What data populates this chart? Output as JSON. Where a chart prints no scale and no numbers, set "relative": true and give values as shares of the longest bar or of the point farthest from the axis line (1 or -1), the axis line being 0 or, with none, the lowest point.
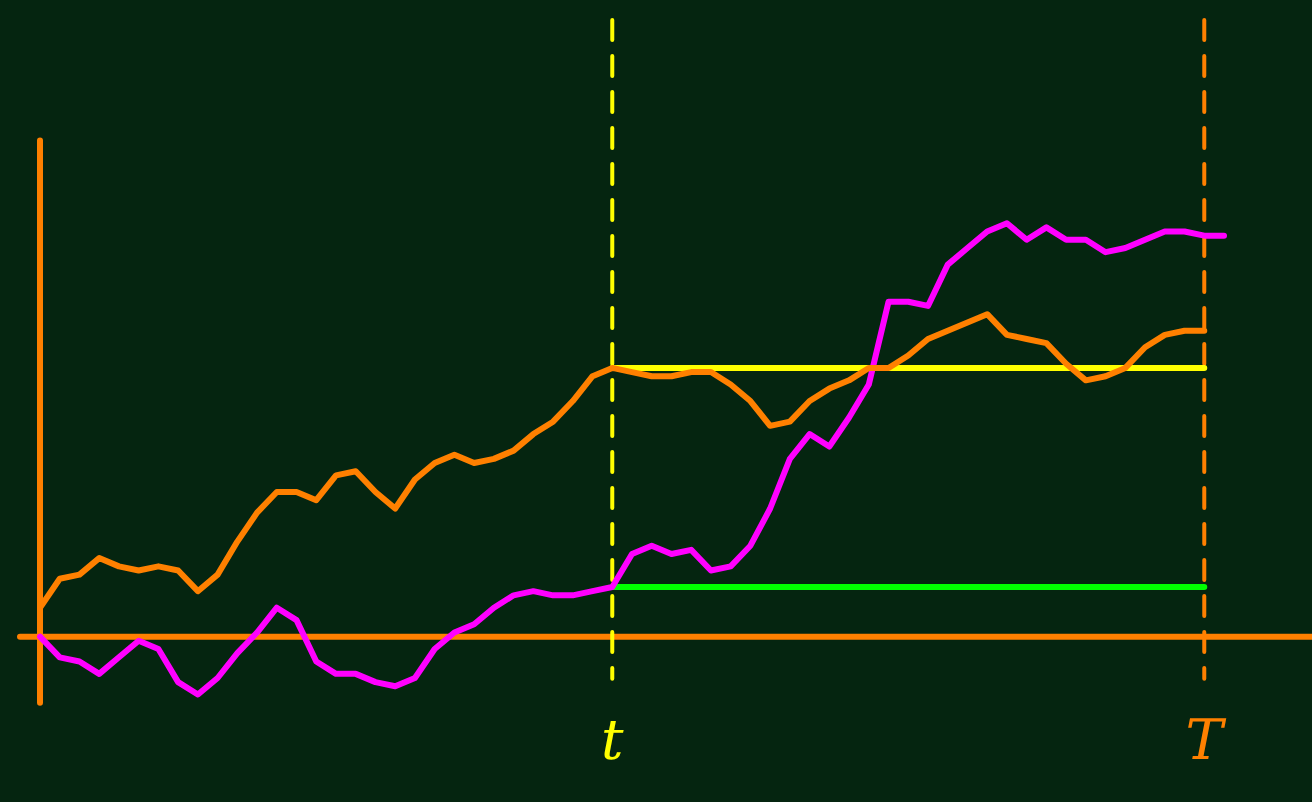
{
  "chart_data": {
    "type": "line",
    "relative": true,
    "grid": false,
    "legend": false,
    "marker": "none",
    "line_style": "solid",
    "categories": [
      null,
      null,
      null,
      null,
      null,
      null,
      null,
      null,
      null,
      null,
      null,
      null,
      null,
      null,
      null,
      null,
      null,
      null,
      null,
      null,
      null,
      null,
      null,
      null,
      null,
      null,
      null,
      null,
      null,
      "t",
      null,
      null,
      null,
      null,
      null,
      null,
      null,
      null,
      null,
      null,
      null,
      null,
      null,
      null,
      null,
      null,
      null,
      null,
      null,
      null,
      null,
      null,
      null,
      null,
      null,
      null,
      null,
      null,
      null,
      "T",
      null
    ],
    "series": [
      {
        "color": "#ff8000",
        "values": [
          0.07,
          0.14,
          0.15,
          0.19,
          0.17,
          0.16,
          0.17,
          0.16,
          0.11,
          0.15,
          0.23,
          0.3,
          0.35,
          0.35,
          0.33,
          0.39,
          0.4,
          0.35,
          0.31,
          0.38,
          0.42,
          0.44,
          0.42,
          0.43,
          0.45,
          0.49,
          0.52,
          0.57,
          0.63,
          0.65,
          0.64,
          0.63,
          0.63,
          0.64,
          0.64,
          0.61,
          0.57,
          0.51,
          0.52,
          0.57,
          0.6,
          0.62,
          0.65,
          0.65,
          0.68,
          0.72,
          0.74,
          0.76,
          0.78,
          0.73,
          0.72,
          0.71,
          0.66,
          0.62,
          0.63,
          0.65,
          0.7,
          0.73,
          0.74,
          0.74,
          null
        ]
      },
      {
        "color": "#ff00ff",
        "values": [
          0,
          -0.05,
          -0.06,
          -0.09,
          -0.05,
          -0.01,
          -0.03,
          -0.11,
          -0.14,
          -0.1,
          -0.04,
          0.01,
          0.07,
          0.04,
          -0.06,
          -0.09,
          -0.09,
          -0.11,
          -0.12,
          -0.1,
          -0.03,
          0.01,
          0.03,
          0.07,
          0.1,
          0.11,
          0.1,
          0.1,
          0.11,
          0.12,
          0.2,
          0.22,
          0.2,
          0.21,
          0.16,
          0.17,
          0.22,
          0.31,
          0.43,
          0.49,
          0.46,
          0.53,
          0.61,
          0.81,
          0.81,
          0.8,
          0.9,
          0.94,
          0.98,
          1,
          0.96,
          0.99,
          0.96,
          0.96,
          0.93,
          0.94,
          0.96,
          0.98,
          0.98,
          0.97,
          0.97
        ]
      },
      {
        "color": "#ffff00",
        "values": [
          null,
          null,
          null,
          null,
          null,
          null,
          null,
          null,
          null,
          null,
          null,
          null,
          null,
          null,
          null,
          null,
          null,
          null,
          null,
          null,
          null,
          null,
          null,
          null,
          null,
          null,
          null,
          null,
          null,
          0.65,
          0.65,
          0.65,
          0.65,
          0.65,
          0.65,
          0.65,
          0.65,
          0.65,
          0.65,
          0.65,
          0.65,
          0.65,
          0.65,
          0.65,
          0.65,
          0.65,
          0.65,
          0.65,
          0.65,
          0.65,
          0.65,
          0.65,
          0.65,
          0.65,
          0.65,
          0.65,
          0.65,
          0.65,
          0.65,
          0.65,
          null
        ]
      },
      {
        "color": "#00ff00",
        "values": [
          null,
          null,
          null,
          null,
          null,
          null,
          null,
          null,
          null,
          null,
          null,
          null,
          null,
          null,
          null,
          null,
          null,
          null,
          null,
          null,
          null,
          null,
          null,
          null,
          null,
          null,
          null,
          null,
          null,
          0.12,
          0.12,
          0.12,
          0.12,
          0.12,
          0.12,
          0.12,
          0.12,
          0.12,
          0.12,
          0.12,
          0.12,
          0.12,
          0.12,
          0.12,
          0.12,
          0.12,
          0.12,
          0.12,
          0.12,
          0.12,
          0.12,
          0.12,
          0.12,
          0.12,
          0.12,
          0.12,
          0.12,
          0.12,
          0.12,
          0.12,
          null
        ]
      }
    ],
    "ref_lines": [
      {
        "axis": "y",
        "value": 0,
        "color": "#ff8000",
        "line_style": "solid"
      },
      {
        "axis": "x",
        "value": "t",
        "color": "#ffff00",
        "line_style": "dashed"
      },
      {
        "axis": "x",
        "value": "T",
        "color": "#ff8000",
        "line_style": "dashed"
      }
    ]
  }
}
